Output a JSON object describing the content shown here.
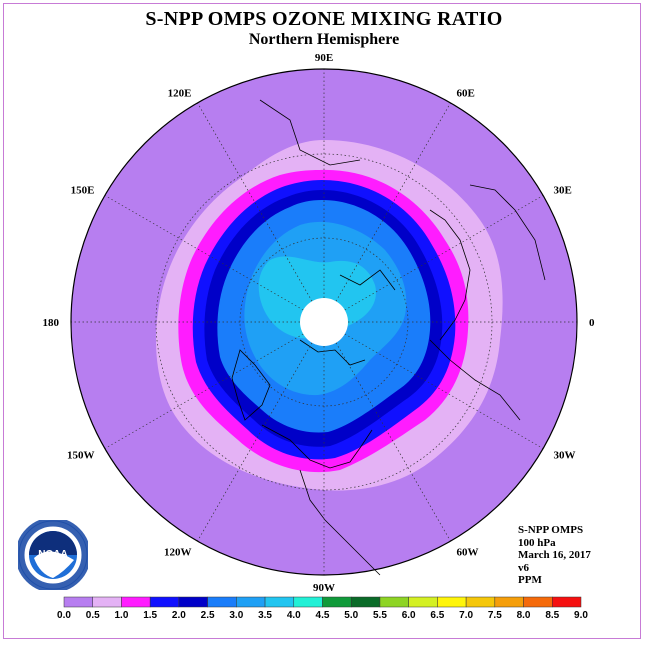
{
  "title": "S-NPP OMPS OZONE MIXING RATIO",
  "subtitle": "Northern Hemisphere",
  "longitude_labels": [
    "90E",
    "60E",
    "30E",
    "0",
    "30W",
    "60W",
    "90W",
    "120W",
    "150W",
    "180",
    "150E",
    "120E"
  ],
  "info": {
    "instrument": "S-NPP OMPS",
    "pressure": "100 hPa",
    "date": "March 16, 2017",
    "version": "v6",
    "units": "PPM"
  },
  "logo": {
    "name": "NOAA",
    "ring_text": "NATIONAL OCEANIC AND ATMOSPHERIC ADMINISTRATION · U.S. DEPARTMENT OF COMMERCE"
  },
  "colorbar": {
    "ticks": [
      "0.0",
      "0.5",
      "1.0",
      "1.5",
      "2.0",
      "2.5",
      "3.0",
      "3.5",
      "4.0",
      "4.5",
      "5.0",
      "5.5",
      "6.0",
      "6.5",
      "7.0",
      "7.5",
      "8.0",
      "8.5",
      "9.0"
    ],
    "colors": [
      "#b77ef0",
      "#e4b2f5",
      "#ff1cff",
      "#1010ff",
      "#0000c8",
      "#1a7dfa",
      "#1fa0f5",
      "#22c5f0",
      "#22f0d6",
      "#109a3a",
      "#0a6b28",
      "#8ed424",
      "#d4f023",
      "#fff50a",
      "#f5c70a",
      "#f59e0a",
      "#f56a0a",
      "#f51010",
      "#8b5a3c"
    ]
  },
  "map": {
    "zone_colors": {
      "outer": "#b77ef0",
      "band_light": "#e4b2f5",
      "band_magenta": "#ff1cff",
      "band_blue": "#1010ff",
      "band_dark": "#0000c8",
      "band_mid": "#1a7dfa",
      "band_sky": "#1fa0f5",
      "band_cyan": "#22c5f0",
      "no_data": "#ffffff"
    }
  }
}
